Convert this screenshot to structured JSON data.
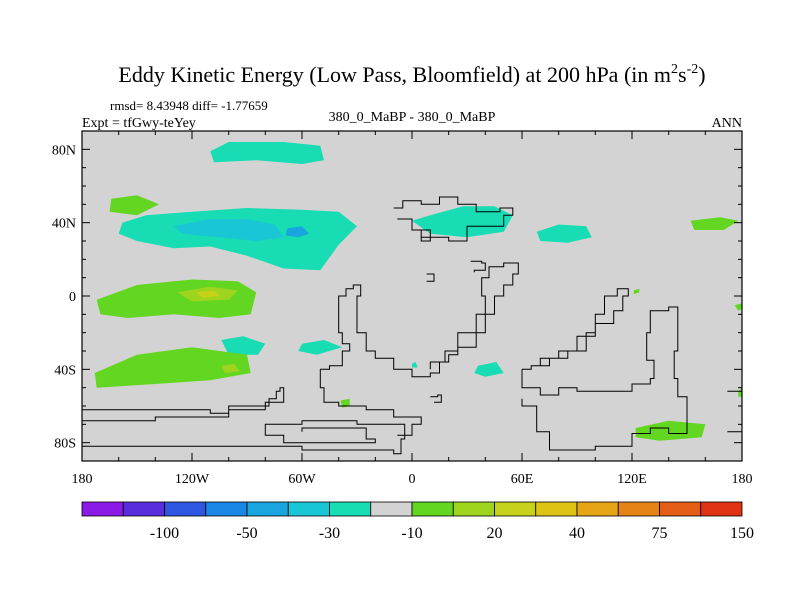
{
  "chart_data": {
    "type": "heatmap",
    "title": {
      "main": "Eddy Kinetic Energy (Low Pass, Bloomfield) at 200 hPa (in m",
      "sup1": "2",
      "mid": "s",
      "sup2": "-2",
      "close": ")"
    },
    "stats": "rmsd= 8.43948 diff= -1.77659",
    "experiment": "Expt = tfGwy-teYey",
    "comparison": "380_0_MaBP - 380_0_MaBP",
    "period": "ANN",
    "x_axis": {
      "range": [
        -180,
        180
      ],
      "ticks": [
        {
          "value": -180,
          "label": "180"
        },
        {
          "value": -120,
          "label": "120W"
        },
        {
          "value": -60,
          "label": "60W"
        },
        {
          "value": 0,
          "label": "0"
        },
        {
          "value": 60,
          "label": "60E"
        },
        {
          "value": 120,
          "label": "120E"
        },
        {
          "value": 180,
          "label": "180"
        }
      ],
      "minor_step": 20
    },
    "y_axis": {
      "range": [
        -90,
        90
      ],
      "ticks": [
        {
          "value": 80,
          "label": "80N"
        },
        {
          "value": 40,
          "label": "40N"
        },
        {
          "value": 0,
          "label": "0"
        },
        {
          "value": -40,
          "label": "40S"
        },
        {
          "value": -80,
          "label": "80S"
        }
      ],
      "minor_step": 10
    },
    "background_color": "#d3d3d3",
    "coastline_color": "#000000",
    "colorbar": {
      "colors": [
        "#8c1ae6",
        "#5a2ddc",
        "#2e56e0",
        "#1a86e6",
        "#19a6e0",
        "#19c6d6",
        "#17dcb4",
        "#d3d3d3",
        "#62d620",
        "#9ed41e",
        "#c6d11a",
        "#ddc414",
        "#e6a514",
        "#e68316",
        "#e35d16",
        "#e03214"
      ],
      "labels": [
        {
          "boundary": 2,
          "label": "-100"
        },
        {
          "boundary": 4,
          "label": "-50"
        },
        {
          "boundary": 6,
          "label": "-30"
        },
        {
          "boundary": 8,
          "label": "-10"
        },
        {
          "boundary": 10,
          "label": "20"
        },
        {
          "boundary": 12,
          "label": "40"
        },
        {
          "boundary": 14,
          "label": "75"
        },
        {
          "boundary": 16,
          "label": "150"
        }
      ]
    },
    "fill_regions": [
      {
        "color": "#17dcb4",
        "points": [
          [
            -120,
            46
          ],
          [
            -90,
            48
          ],
          [
            -60,
            47
          ],
          [
            -40,
            46
          ],
          [
            -30,
            38
          ],
          [
            -40,
            28
          ],
          [
            -50,
            14
          ],
          [
            -70,
            15
          ],
          [
            -90,
            22
          ],
          [
            -110,
            27
          ],
          [
            -130,
            26
          ],
          [
            -150,
            30
          ],
          [
            -160,
            34
          ],
          [
            -158,
            40
          ],
          [
            -145,
            44
          ]
        ]
      },
      {
        "color": "#19c6d6",
        "points": [
          [
            -130,
            38
          ],
          [
            -110,
            42
          ],
          [
            -90,
            42
          ],
          [
            -75,
            39
          ],
          [
            -70,
            32
          ],
          [
            -85,
            30
          ],
          [
            -105,
            32
          ],
          [
            -125,
            34
          ]
        ]
      },
      {
        "color": "#19a6e0",
        "points": [
          [
            -68,
            37
          ],
          [
            -60,
            38
          ],
          [
            -56,
            34
          ],
          [
            -62,
            32
          ],
          [
            -69,
            33
          ]
        ]
      },
      {
        "color": "#17dcb4",
        "points": [
          [
            -110,
            79
          ],
          [
            -100,
            84
          ],
          [
            -70,
            84
          ],
          [
            -50,
            82
          ],
          [
            -48,
            74
          ],
          [
            -60,
            72
          ],
          [
            -85,
            74
          ],
          [
            -108,
            73
          ]
        ]
      },
      {
        "color": "#17dcb4",
        "points": [
          [
            0,
            41
          ],
          [
            10,
            44
          ],
          [
            28,
            49
          ],
          [
            45,
            49
          ],
          [
            55,
            44
          ],
          [
            50,
            35
          ],
          [
            30,
            32
          ],
          [
            10,
            34
          ]
        ]
      },
      {
        "color": "#17dcb4",
        "points": [
          [
            68,
            35
          ],
          [
            80,
            39
          ],
          [
            95,
            38
          ],
          [
            98,
            32
          ],
          [
            85,
            29
          ],
          [
            70,
            30
          ]
        ]
      },
      {
        "color": "#17dcb4",
        "points": [
          [
            -104,
            -24
          ],
          [
            -92,
            -22
          ],
          [
            -80,
            -26
          ],
          [
            -84,
            -32
          ],
          [
            -100,
            -32
          ]
        ]
      },
      {
        "color": "#17dcb4",
        "points": [
          [
            -60,
            -26
          ],
          [
            -48,
            -24
          ],
          [
            -38,
            -28
          ],
          [
            -52,
            -32
          ],
          [
            -62,
            -30
          ]
        ]
      },
      {
        "color": "#17dcb4",
        "points": [
          [
            36,
            -38
          ],
          [
            46,
            -36
          ],
          [
            50,
            -42
          ],
          [
            40,
            -44
          ],
          [
            34,
            -42
          ]
        ]
      },
      {
        "color": "#17dcb4",
        "points": [
          [
            0,
            -37
          ],
          [
            2,
            -36
          ],
          [
            3,
            -39
          ],
          [
            0,
            -39
          ]
        ]
      },
      {
        "color": "#62d620",
        "points": [
          [
            -172,
            -2
          ],
          [
            -150,
            6
          ],
          [
            -120,
            9
          ],
          [
            -95,
            8
          ],
          [
            -85,
            2
          ],
          [
            -88,
            -10
          ],
          [
            -105,
            -12
          ],
          [
            -130,
            -10
          ],
          [
            -155,
            -12
          ],
          [
            -170,
            -10
          ]
        ]
      },
      {
        "color": "#9ed41e",
        "points": [
          [
            -128,
            2
          ],
          [
            -110,
            5
          ],
          [
            -95,
            3
          ],
          [
            -100,
            -2
          ],
          [
            -120,
            -3
          ]
        ]
      },
      {
        "color": "#c6d11a",
        "points": [
          [
            -118,
            2
          ],
          [
            -108,
            3
          ],
          [
            -105,
            0
          ],
          [
            -114,
            -1
          ]
        ]
      },
      {
        "color": "#62d620",
        "points": [
          [
            -173,
            -42
          ],
          [
            -150,
            -32
          ],
          [
            -120,
            -28
          ],
          [
            -90,
            -32
          ],
          [
            -88,
            -42
          ],
          [
            -110,
            -46
          ],
          [
            -140,
            -48
          ],
          [
            -172,
            -50
          ]
        ]
      },
      {
        "color": "#9ed41e",
        "points": [
          [
            -104,
            -38
          ],
          [
            -97,
            -37
          ],
          [
            -94,
            -41
          ],
          [
            -102,
            -42
          ]
        ]
      },
      {
        "color": "#62d620",
        "points": [
          [
            -164,
            53
          ],
          [
            -150,
            55
          ],
          [
            -138,
            50
          ],
          [
            -150,
            44
          ],
          [
            -165,
            46
          ]
        ]
      },
      {
        "color": "#62d620",
        "points": [
          [
            152,
            41
          ],
          [
            168,
            43
          ],
          [
            178,
            41
          ],
          [
            170,
            36
          ],
          [
            154,
            36
          ]
        ]
      },
      {
        "color": "#62d620",
        "points": [
          [
            122,
            -72
          ],
          [
            140,
            -68
          ],
          [
            160,
            -70
          ],
          [
            158,
            -77
          ],
          [
            135,
            -79
          ],
          [
            122,
            -77
          ]
        ]
      },
      {
        "color": "#62d620",
        "points": [
          [
            178,
            -52
          ],
          [
            180,
            -50
          ],
          [
            180,
            -55
          ],
          [
            178,
            -55
          ]
        ]
      },
      {
        "color": "#62d620",
        "points": [
          [
            180,
            -4
          ],
          [
            176,
            -5
          ],
          [
            178,
            -8
          ],
          [
            180,
            -7
          ]
        ]
      },
      {
        "color": "#62d620",
        "points": [
          [
            121,
            3
          ],
          [
            124,
            4
          ],
          [
            124,
            2
          ],
          [
            121,
            1
          ]
        ]
      },
      {
        "color": "#62d620",
        "points": [
          [
            -39,
            -57
          ],
          [
            -34,
            -56
          ],
          [
            -34,
            -60
          ],
          [
            -38,
            -61
          ]
        ]
      }
    ],
    "contour_paths": [
      [
        [
          -180,
          -62
        ],
        [
          -110,
          -64
        ],
        [
          -100,
          -60
        ],
        [
          -80,
          -60
        ],
        [
          -78,
          -56
        ],
        [
          -74,
          -52
        ],
        [
          -72,
          -50
        ],
        [
          -70,
          -54
        ],
        [
          -70,
          -58
        ],
        [
          -80,
          -62
        ],
        [
          -100,
          -66
        ],
        [
          -140,
          -68
        ],
        [
          -180,
          -72
        ]
      ],
      [
        [
          -180,
          -82
        ],
        [
          -60,
          -84
        ],
        [
          -10,
          -86
        ],
        [
          -6,
          -78
        ],
        [
          -4,
          -70
        ],
        [
          -30,
          -68
        ],
        [
          -60,
          -70
        ],
        [
          -80,
          -76
        ],
        [
          -70,
          -80
        ],
        [
          -40,
          -80
        ],
        [
          -20,
          -78
        ],
        [
          -25,
          -72
        ],
        [
          -60,
          -74
        ]
      ],
      [
        [
          -50,
          -40
        ],
        [
          -45,
          -38
        ],
        [
          -38,
          -30
        ],
        [
          -34,
          -26
        ],
        [
          -38,
          -20
        ],
        [
          -40,
          -10
        ],
        [
          -40,
          0
        ],
        [
          -36,
          4
        ],
        [
          -32,
          6
        ],
        [
          -28,
          0
        ],
        [
          -30,
          -10
        ],
        [
          -30,
          -20
        ],
        [
          -25,
          -30
        ],
        [
          -20,
          -34
        ],
        [
          -10,
          -40
        ],
        [
          0,
          -44
        ],
        [
          10,
          -42
        ],
        [
          15,
          -36
        ],
        [
          18,
          -30
        ],
        [
          25,
          -20
        ],
        [
          35,
          -10
        ],
        [
          40,
          0
        ],
        [
          38,
          10
        ],
        [
          42,
          16
        ],
        [
          50,
          18
        ],
        [
          58,
          12
        ],
        [
          55,
          6
        ],
        [
          50,
          0
        ],
        [
          45,
          -10
        ],
        [
          40,
          -20
        ],
        [
          35,
          -28
        ],
        [
          25,
          -32
        ],
        [
          20,
          -36
        ],
        [
          10,
          -40
        ]
      ],
      [
        [
          -50,
          -40
        ],
        [
          -50,
          -50
        ],
        [
          -48,
          -58
        ],
        [
          -40,
          -60
        ],
        [
          -25,
          -62
        ],
        [
          -10,
          -66
        ],
        [
          0,
          -66
        ],
        [
          5,
          -70
        ],
        [
          0,
          -76
        ],
        [
          -8,
          -76
        ]
      ],
      [
        [
          -10,
          48
        ],
        [
          -5,
          52
        ],
        [
          5,
          50
        ],
        [
          15,
          54
        ],
        [
          25,
          50
        ],
        [
          35,
          46
        ],
        [
          48,
          48
        ],
        [
          55,
          44
        ],
        [
          50,
          38
        ],
        [
          40,
          38
        ],
        [
          30,
          30
        ],
        [
          20,
          32
        ],
        [
          10,
          36
        ],
        [
          0,
          42
        ],
        [
          -8,
          42
        ]
      ],
      [
        [
          0,
          36
        ],
        [
          5,
          30
        ],
        [
          10,
          32
        ],
        [
          5,
          36
        ]
      ],
      [
        [
          60,
          -40
        ],
        [
          65,
          -38
        ],
        [
          75,
          -34
        ],
        [
          85,
          -30
        ],
        [
          95,
          -20
        ],
        [
          100,
          -10
        ],
        [
          105,
          0
        ],
        [
          112,
          4
        ],
        [
          118,
          0
        ],
        [
          115,
          -8
        ],
        [
          110,
          -15
        ],
        [
          100,
          -22
        ],
        [
          90,
          -30
        ],
        [
          80,
          -34
        ],
        [
          70,
          -38
        ]
      ],
      [
        [
          60,
          -40
        ],
        [
          60,
          -50
        ],
        [
          70,
          -54
        ],
        [
          80,
          -50
        ],
        [
          90,
          -52
        ],
        [
          105,
          -52
        ],
        [
          120,
          -48
        ],
        [
          130,
          -45
        ],
        [
          132,
          -35
        ],
        [
          128,
          -20
        ],
        [
          130,
          -8
        ],
        [
          140,
          -6
        ],
        [
          145,
          -10
        ],
        [
          145,
          -30
        ],
        [
          143,
          -45
        ],
        [
          145,
          -55
        ],
        [
          150,
          -65
        ],
        [
          150,
          -75
        ],
        [
          140,
          -72
        ],
        [
          130,
          -75
        ],
        [
          120,
          -82
        ],
        [
          100,
          -84
        ],
        [
          80,
          -84
        ],
        [
          75,
          -74
        ],
        [
          68,
          -60
        ],
        [
          60,
          -56
        ]
      ],
      [
        [
          172,
          -74
        ],
        [
          180,
          -72
        ]
      ],
      [
        [
          172,
          -52
        ],
        [
          180,
          -50
        ]
      ],
      [
        [
          10,
          -55
        ],
        [
          14,
          -54
        ],
        [
          16,
          -58
        ],
        [
          12,
          -58
        ]
      ],
      [
        [
          32,
          19
        ],
        [
          38,
          18
        ],
        [
          40,
          14
        ],
        [
          34,
          13
        ]
      ],
      [
        [
          8,
          12
        ],
        [
          12,
          11
        ],
        [
          12,
          8
        ],
        [
          8,
          8
        ]
      ]
    ]
  }
}
